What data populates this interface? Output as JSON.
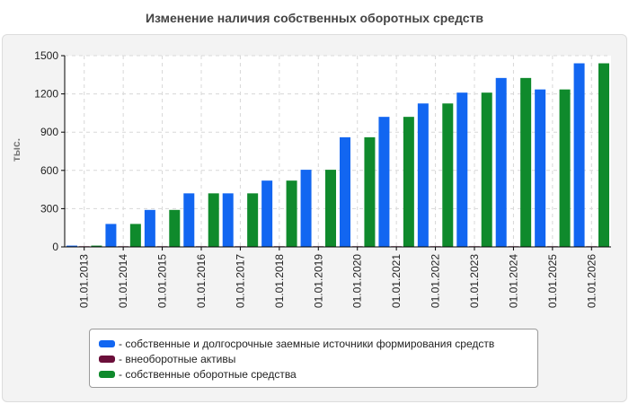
{
  "title": "Изменение наличия собственных оборотных средств",
  "chart_data": {
    "type": "bar",
    "title": "Изменение наличия собственных оборотных средств",
    "ylabel": "тыс.",
    "xlabel": "",
    "ylim": [
      0,
      1500
    ],
    "yticks": [
      0,
      300,
      600,
      900,
      1200,
      1500
    ],
    "grid": true,
    "legend_position": "bottom",
    "categories": [
      "01.01.2013",
      "01.01.2014",
      "01.01.2015",
      "01.01.2016",
      "01.01.2017",
      "01.01.2018",
      "01.01.2019",
      "01.01.2020",
      "01.01.2021",
      "01.01.2022",
      "01.01.2023",
      "01.01.2024",
      "01.01.2025",
      "01.01.2026"
    ],
    "series": [
      {
        "name": "- собственные и долгосрочные заемные источники формирования средств",
        "color": "#1266f1",
        "values": [
          10,
          180,
          290,
          420,
          420,
          520,
          605,
          860,
          1020,
          1125,
          1210,
          1325,
          1235,
          1440
        ]
      },
      {
        "name": "- внеоборотные активы",
        "color": "#6b0f3a",
        "values": [
          5,
          5,
          5,
          5,
          5,
          5,
          5,
          5,
          5,
          5,
          5,
          5,
          5,
          5
        ]
      },
      {
        "name": "- собственные оборотные средства",
        "color": "#0f8a2c",
        "values": [
          10,
          180,
          290,
          420,
          420,
          520,
          605,
          860,
          1020,
          1125,
          1210,
          1325,
          1235,
          1440
        ]
      }
    ]
  }
}
